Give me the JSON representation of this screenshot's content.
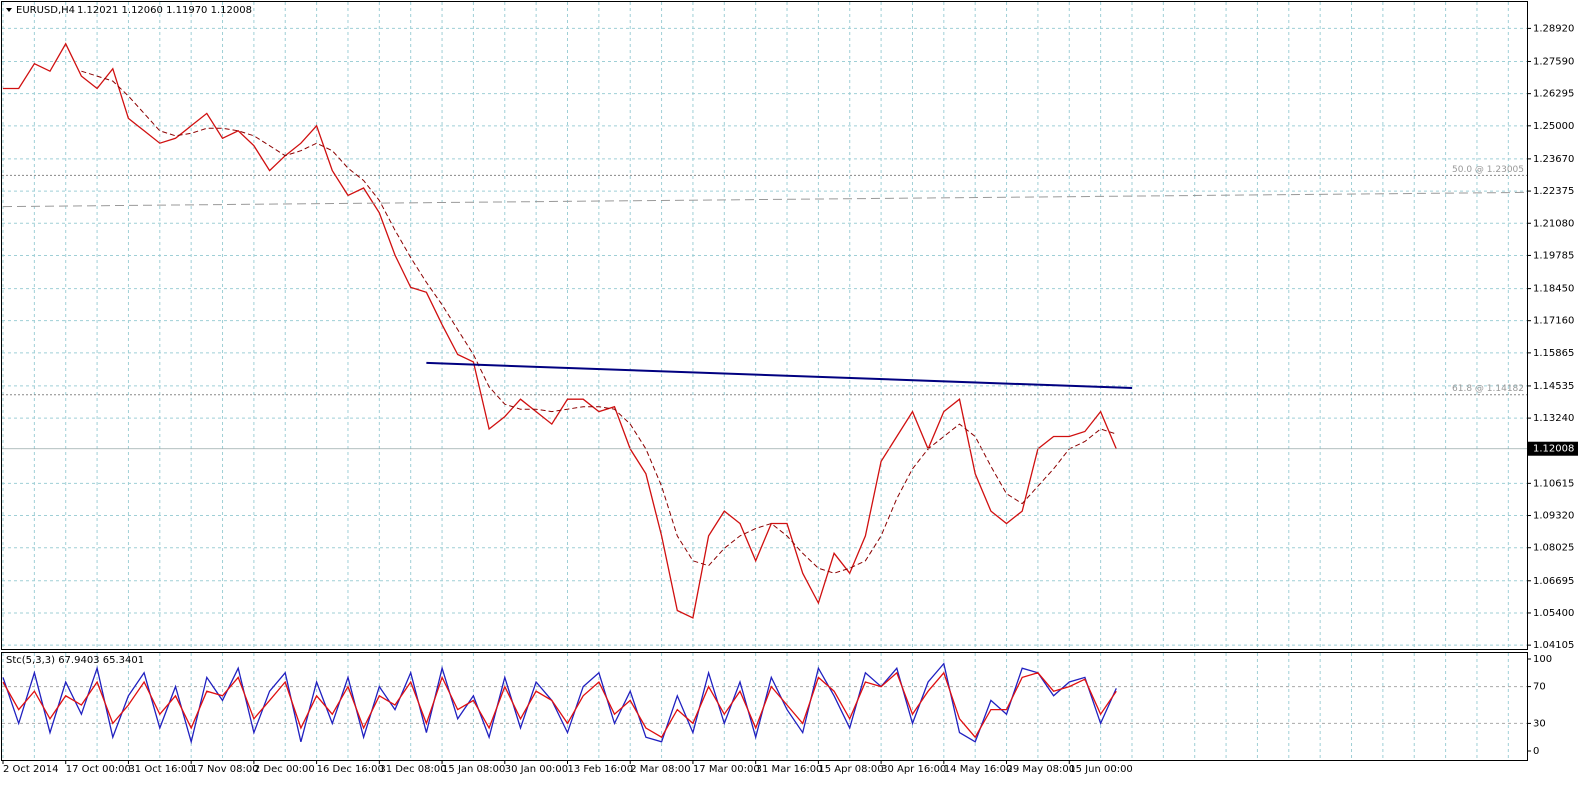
{
  "chart_data": [
    {
      "type": "line",
      "title": "EURUSD,H4",
      "subtitle": "1.12021 1.12060 1.11970 1.12008",
      "categories": [
        "2 Oct 2014",
        null,
        null,
        null,
        "17 Oct 00:00",
        null,
        null,
        null,
        "31 Oct 16:00",
        null,
        null,
        null,
        "17 Nov 08:00",
        null,
        null,
        null,
        "2 Dec 00:00",
        null,
        null,
        null,
        "16 Dec 16:00",
        null,
        null,
        null,
        "31 Dec 08:00",
        null,
        null,
        null,
        "15 Jan 08:00",
        null,
        null,
        null,
        "30 Jan 00:00",
        null,
        null,
        null,
        "13 Feb 16:00",
        null,
        null,
        null,
        "2 Mar 08:00",
        null,
        null,
        null,
        "17 Mar 00:00",
        null,
        null,
        null,
        "31 Mar 16:00",
        null,
        null,
        null,
        "15 Apr 08:00",
        null,
        null,
        null,
        "30 Apr 16:00",
        null,
        null,
        null,
        "14 May 16:00",
        null,
        null,
        null,
        "29 May 08:00",
        null,
        null,
        null,
        "15 Jun 00:00",
        null,
        null,
        null,
        null,
        null,
        null,
        null,
        null,
        null,
        null,
        null,
        null,
        null,
        null,
        null,
        null,
        null,
        null,
        null,
        null,
        null,
        null,
        null,
        null,
        null,
        null,
        null,
        null,
        null
      ],
      "series": [
        {
          "color": "#d01010",
          "dashed": false,
          "values": [
            1.265,
            1.265,
            1.275,
            1.272,
            1.283,
            1.27,
            1.265,
            1.273,
            1.253,
            1.248,
            1.243,
            1.245,
            1.25,
            1.255,
            1.245,
            1.248,
            1.242,
            1.232,
            1.238,
            1.243,
            1.25,
            1.232,
            1.222,
            1.225,
            1.215,
            1.198,
            1.185,
            1.183,
            1.17,
            1.158,
            1.155,
            1.128,
            1.133,
            1.14,
            1.135,
            1.13,
            1.14,
            1.14,
            1.135,
            1.137,
            1.12,
            1.11,
            1.085,
            1.055,
            1.052,
            1.085,
            1.095,
            1.09,
            1.075,
            1.09,
            1.09,
            1.07,
            1.058,
            1.078,
            1.07,
            1.085,
            1.115,
            1.125,
            1.135,
            1.12,
            1.135,
            1.14,
            1.11,
            1.095,
            1.09,
            1.095,
            1.12,
            1.125,
            1.125,
            1.127,
            1.135,
            1.12,
            null,
            null,
            null,
            null,
            null,
            null,
            null,
            null,
            null,
            null,
            null,
            null,
            null,
            null,
            null,
            null,
            null,
            null,
            null,
            null,
            null,
            null,
            null,
            null,
            null,
            null
          ]
        },
        {
          "color": "#8b0000",
          "dashed": true,
          "values": [
            null,
            null,
            null,
            null,
            null,
            1.272,
            1.27,
            1.268,
            1.262,
            1.255,
            1.248,
            1.246,
            1.247,
            1.249,
            1.249,
            1.248,
            1.246,
            1.242,
            1.238,
            1.24,
            1.243,
            1.24,
            1.233,
            1.228,
            1.22,
            1.208,
            1.197,
            1.187,
            1.178,
            1.168,
            1.158,
            1.145,
            1.138,
            1.136,
            1.136,
            1.135,
            1.136,
            1.137,
            1.137,
            1.136,
            1.13,
            1.12,
            1.105,
            1.085,
            1.075,
            1.073,
            1.08,
            1.085,
            1.088,
            1.09,
            1.085,
            1.078,
            1.072,
            1.07,
            1.072,
            1.075,
            1.085,
            1.1,
            1.112,
            1.12,
            1.125,
            1.13,
            1.125,
            1.113,
            1.102,
            1.098,
            1.105,
            1.112,
            1.12,
            1.123,
            1.128,
            1.126,
            null,
            null,
            null,
            null,
            null,
            null,
            null,
            null,
            null,
            null,
            null,
            null,
            null,
            null,
            null,
            null,
            null,
            null,
            null,
            null,
            null,
            null,
            null,
            null,
            null,
            null
          ]
        }
      ],
      "lines": [
        {
          "color": "#000080",
          "dashed": false,
          "x": [
            27,
            72
          ],
          "values": [
            1.1546,
            1.1445
          ]
        },
        {
          "color": "#999999",
          "dashed": true,
          "x": [
            0,
            97
          ],
          "values": [
            1.2175,
            1.2232
          ]
        }
      ],
      "levels": [
        {
          "value": 1.23005,
          "label": "50.0 @ 1.23005"
        },
        {
          "value": 1.14182,
          "label": "61.8 @ 1.14182"
        }
      ],
      "current_price": {
        "value": 1.12008,
        "label": "1.12008"
      },
      "ylim": [
        1.0399,
        1.2958
      ],
      "yticks": [
        {
          "value": 1.2892,
          "label": "1.28920"
        },
        {
          "value": 1.2759,
          "label": "1.27590"
        },
        {
          "value": 1.26295,
          "label": "1.26295"
        },
        {
          "value": 1.25,
          "label": "1.25000"
        },
        {
          "value": 1.2367,
          "label": "1.23670"
        },
        {
          "value": 1.22375,
          "label": "1.22375"
        },
        {
          "value": 1.2108,
          "label": "1.21080"
        },
        {
          "value": 1.19785,
          "label": "1.19785"
        },
        {
          "value": 1.1845,
          "label": "1.18450"
        },
        {
          "value": 1.1716,
          "label": "1.17160"
        },
        {
          "value": 1.15865,
          "label": "1.15865"
        },
        {
          "value": 1.14535,
          "label": "1.14535"
        },
        {
          "value": 1.1324,
          "label": "1.13240"
        },
        {
          "value": 1.10615,
          "label": "1.10615"
        },
        {
          "value": 1.0932,
          "label": "1.09320"
        },
        {
          "value": 1.08025,
          "label": "1.08025"
        },
        {
          "value": 1.06695,
          "label": "1.06695"
        },
        {
          "value": 1.054,
          "label": "1.05400"
        },
        {
          "value": 1.04105,
          "label": "1.04105"
        }
      ],
      "grid": true
    },
    {
      "type": "line",
      "title": "Stc(5,3,3) 67.9403 65.3401",
      "series": [
        {
          "color": "#2020c0",
          "dashed": false,
          "values": [
            80,
            30,
            85,
            20,
            75,
            40,
            90,
            15,
            60,
            85,
            25,
            70,
            10,
            80,
            55,
            90,
            20,
            65,
            85,
            10,
            75,
            30,
            80,
            15,
            70,
            45,
            85,
            20,
            90,
            35,
            60,
            15,
            80,
            25,
            75,
            55,
            20,
            70,
            85,
            30,
            65,
            15,
            10,
            60,
            20,
            85,
            30,
            75,
            15,
            80,
            45,
            20,
            90,
            60,
            25,
            85,
            70,
            90,
            30,
            75,
            95,
            20,
            10,
            55,
            40,
            90,
            85,
            60,
            75,
            80,
            30,
            68,
            null,
            null,
            null,
            null,
            null,
            null,
            null,
            null,
            null,
            null,
            null,
            null,
            null,
            null,
            null,
            null,
            null,
            null,
            null,
            null,
            null,
            null,
            null,
            null,
            null,
            null
          ]
        },
        {
          "color": "#e01010",
          "dashed": false,
          "values": [
            75,
            45,
            65,
            35,
            60,
            50,
            75,
            30,
            50,
            75,
            40,
            60,
            25,
            65,
            60,
            80,
            35,
            55,
            75,
            25,
            60,
            40,
            70,
            25,
            60,
            50,
            75,
            30,
            80,
            45,
            55,
            25,
            70,
            35,
            65,
            55,
            30,
            60,
            75,
            40,
            55,
            25,
            15,
            45,
            30,
            70,
            40,
            65,
            25,
            70,
            50,
            30,
            80,
            65,
            35,
            75,
            70,
            85,
            40,
            65,
            85,
            35,
            15,
            45,
            45,
            80,
            85,
            65,
            70,
            78,
            40,
            65,
            null,
            null,
            null,
            null,
            null,
            null,
            null,
            null,
            null,
            null,
            null,
            null,
            null,
            null,
            null,
            null,
            null,
            null,
            null,
            null,
            null,
            null,
            null,
            null,
            null,
            null
          ]
        }
      ],
      "ylim": [
        0,
        100
      ],
      "yticks": [
        0,
        30,
        70,
        100
      ],
      "grid": true
    }
  ]
}
